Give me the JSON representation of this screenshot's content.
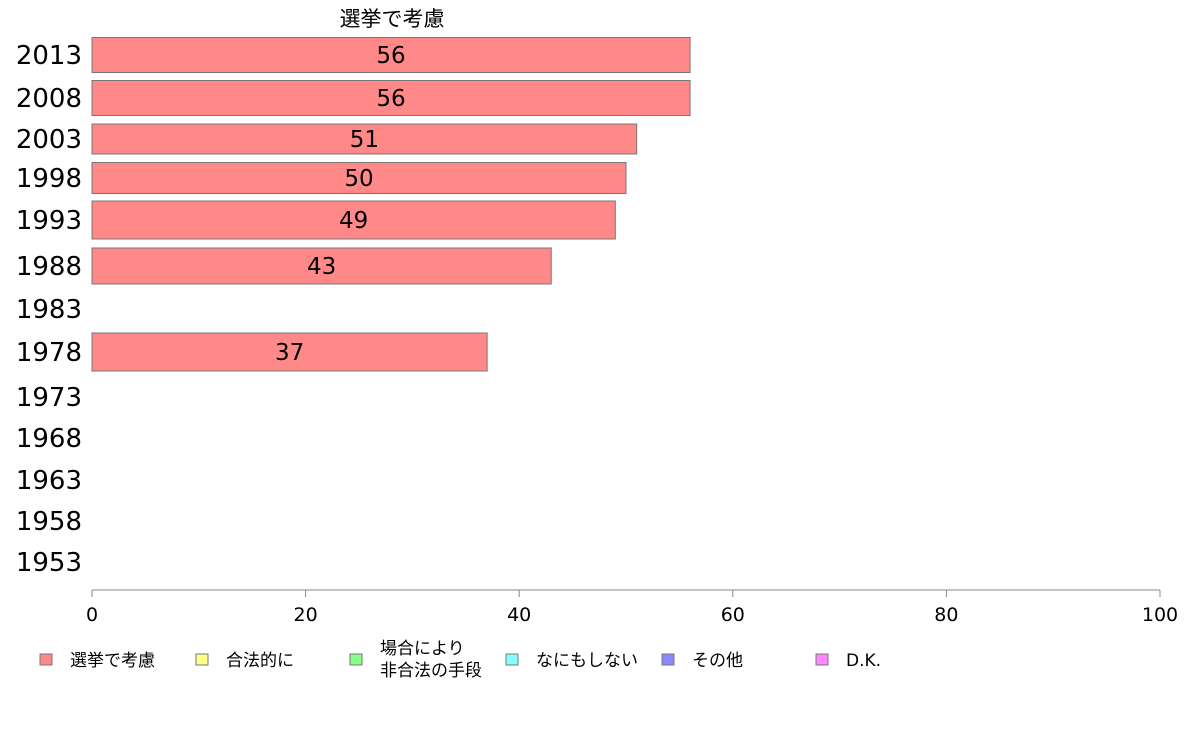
{
  "chart_data": {
    "type": "bar",
    "orientation": "horizontal",
    "title": "選挙で考慮",
    "categories": [
      "2013",
      "2008",
      "2003",
      "1998",
      "1993",
      "1988",
      "1983",
      "1978",
      "1973",
      "1968",
      "1963",
      "1958",
      "1953"
    ],
    "series": [
      {
        "name": "選挙で考慮",
        "color": "#ff8888",
        "values": [
          56,
          56,
          51,
          50,
          49,
          43,
          null,
          37,
          null,
          null,
          null,
          null,
          null
        ]
      }
    ],
    "data_labels": [
      "56",
      "56",
      "51",
      "50",
      "49",
      "43",
      "",
      "37",
      "",
      "",
      "",
      "",
      ""
    ],
    "xlim": [
      0,
      100
    ],
    "xticks": [
      0,
      20,
      40,
      60,
      80,
      100
    ],
    "xtick_labels": [
      "0",
      "20",
      "40",
      "60",
      "80",
      "100"
    ],
    "grid": false,
    "legend_position": "bottom",
    "legend": [
      {
        "lines": [
          "選挙で考慮"
        ],
        "color": "#ff8888"
      },
      {
        "lines": [
          "合法的に"
        ],
        "color": "#ffff88"
      },
      {
        "lines": [
          "場合により",
          "非合法の手段"
        ],
        "color": "#88ff88"
      },
      {
        "lines": [
          "なにもしない"
        ],
        "color": "#88ffff"
      },
      {
        "lines": [
          "その他"
        ],
        "color": "#8888ff"
      },
      {
        "lines": [
          "D.K."
        ],
        "color": "#ff88ff"
      }
    ]
  }
}
